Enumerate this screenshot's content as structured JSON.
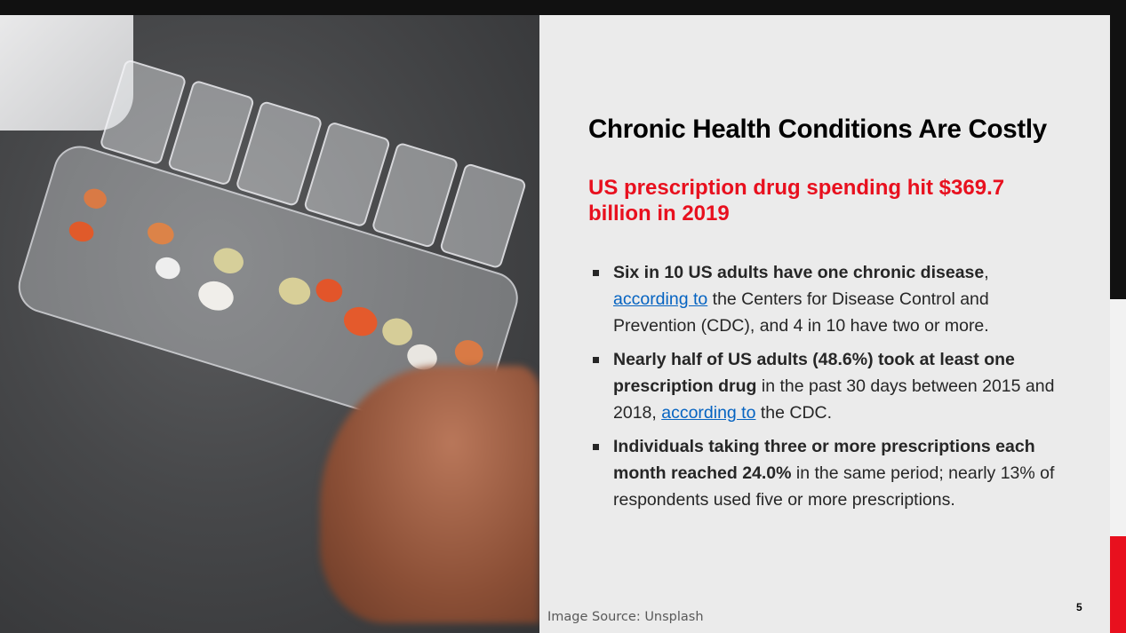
{
  "slide": {
    "title": "Chronic Health Conditions Are Costly",
    "subtitle": "US prescription drug spending hit $369.7 billion in 2019",
    "bullets": [
      {
        "bold": "Six in 10 US adults have one chronic disease",
        "pre": ",",
        "link": "according to",
        "rest": " the Centers for Disease Control and Prevention (CDC), and 4 in 10 have two or more."
      },
      {
        "bold": "Nearly half of US adults (48.6%) took at least one prescription drug",
        "pre": " in the past 30 days between 2015 and 2018, ",
        "link": "according to",
        "rest": " the CDC."
      },
      {
        "bold": "Individuals taking three or more prescriptions each month reached 24.0%",
        "pre": " in the same period; nearly 13% of respondents used five or more prescriptions.",
        "link": "",
        "rest": ""
      }
    ],
    "image_source": "Image Source: Unsplash",
    "page_number": "5"
  },
  "colors": {
    "accent": "#e8101e",
    "link": "#0563c1",
    "panel": "#ebebeb"
  }
}
